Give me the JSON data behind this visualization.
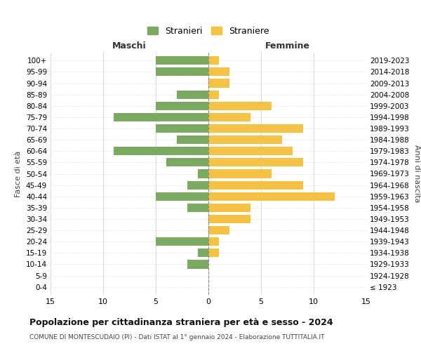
{
  "age_groups": [
    "0-4",
    "5-9",
    "10-14",
    "15-19",
    "20-24",
    "25-29",
    "30-34",
    "35-39",
    "40-44",
    "45-49",
    "50-54",
    "55-59",
    "60-64",
    "65-69",
    "70-74",
    "75-79",
    "80-84",
    "85-89",
    "90-94",
    "95-99",
    "100+"
  ],
  "birth_years": [
    "2019-2023",
    "2014-2018",
    "2009-2013",
    "2004-2008",
    "1999-2003",
    "1994-1998",
    "1989-1993",
    "1984-1988",
    "1979-1983",
    "1974-1978",
    "1969-1973",
    "1964-1968",
    "1959-1963",
    "1954-1958",
    "1949-1953",
    "1944-1948",
    "1939-1943",
    "1934-1938",
    "1929-1933",
    "1924-1928",
    "≤ 1923"
  ],
  "maschi": [
    5,
    5,
    0,
    3,
    5,
    9,
    5,
    3,
    9,
    4,
    1,
    2,
    5,
    2,
    0,
    0,
    5,
    1,
    2,
    0,
    0
  ],
  "femmine": [
    1,
    2,
    2,
    1,
    6,
    4,
    9,
    7,
    8,
    9,
    6,
    9,
    12,
    4,
    4,
    2,
    1,
    1,
    0,
    0,
    0
  ],
  "maschi_color": "#7aaa5d",
  "femmine_color": "#f5c242",
  "title": "Popolazione per cittadinanza straniera per età e sesso - 2024",
  "subtitle": "COMUNE DI MONTESCUDAIO (PI) - Dati ISTAT al 1° gennaio 2024 - Elaborazione TUTTITALIA.IT",
  "xlabel_left": "Maschi",
  "xlabel_right": "Femmine",
  "ylabel_left": "Fasce di età",
  "ylabel_right": "Anni di nascita",
  "legend_maschi": "Stranieri",
  "legend_femmine": "Straniere",
  "xlim": 15,
  "background_color": "#ffffff",
  "grid_color": "#cccccc"
}
